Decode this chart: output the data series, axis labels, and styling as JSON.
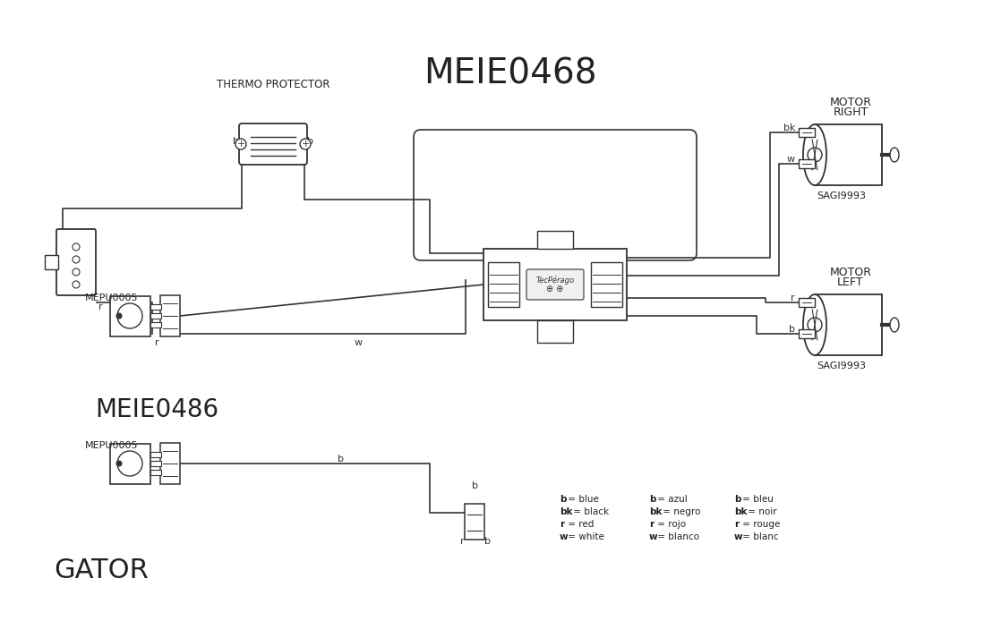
{
  "title": "MEIE0468",
  "subtitle": "MEIE0486",
  "gator_label": "GATOR",
  "bg_color": "#ffffff",
  "line_color": "#333333",
  "text_color": "#222222",
  "thermo_label": "THERMO PROTECTOR",
  "motor_right_label1": "MOTOR",
  "motor_right_label2": "RIGHT",
  "motor_left_label1": "MOTOR",
  "motor_left_label2": "LEFT",
  "motor_part": "SAGI9993",
  "switch_part": "MEPU0005",
  "legend_en": [
    "b = blue",
    "bk = black",
    "r = red",
    "w = white"
  ],
  "legend_es": [
    "b = azul",
    "bk = negro",
    "r = rojo",
    "w = blanco"
  ],
  "legend_fr": [
    "b = bleu",
    "bk = noir",
    "r = rouge",
    "w = blanc"
  ]
}
